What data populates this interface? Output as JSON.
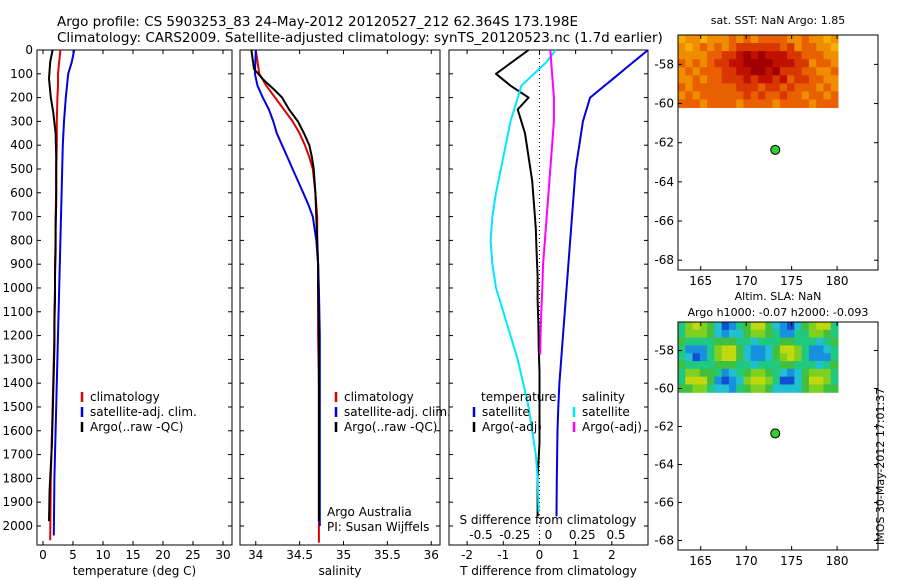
{
  "header": {
    "line1": "Argo profile: CS 5903253_83 24-May-2012 20120527_212 62.364S 173.198E",
    "line2": "Climatology: CARS2009. Satellite-adjusted climatology: synTS_20120523.nc (1.7d earlier)"
  },
  "timestamp": "IMOS 30-May-2012 17:01:37",
  "colors": {
    "climatology": "#e00000",
    "satellite": "#0000e0",
    "argo": "#000000",
    "sal_satellite": "#00e8ff",
    "sal_argo": "#ff00ff",
    "float_marker": "#33cc33"
  },
  "chart_data": [
    {
      "type": "line",
      "id": "temperature",
      "xlabel": "temperature (deg C)",
      "xticks": [
        0,
        5,
        10,
        15,
        20,
        25,
        30
      ],
      "xlim": [
        -1,
        31.5
      ],
      "yticks": [
        0,
        100,
        200,
        300,
        400,
        500,
        600,
        700,
        800,
        900,
        1000,
        1100,
        1200,
        1300,
        1400,
        1500,
        1600,
        1700,
        1800,
        1900,
        2000
      ],
      "ylim": [
        2080,
        0
      ],
      "legend": [
        "climatology",
        "satellite-adj. clim.",
        "Argo(..raw -QC)"
      ],
      "series": [
        {
          "name": "climatology",
          "color": "#e00000",
          "x": [
            2.9,
            2.7,
            2.5,
            2.5,
            2.4,
            2.3,
            2.3,
            2.2,
            2.2,
            2.1,
            2.1,
            2.0,
            2.0,
            1.9,
            1.9,
            1.8,
            1.7,
            1.6,
            1.5,
            1.4,
            1.3,
            1.2
          ],
          "y": [
            0,
            50,
            100,
            150,
            200,
            300,
            400,
            500,
            600,
            700,
            800,
            900,
            1000,
            1100,
            1200,
            1300,
            1400,
            1500,
            1600,
            1700,
            1800,
            2060
          ]
        },
        {
          "name": "satellite-adj. clim.",
          "color": "#0000e0",
          "x": [
            5.2,
            4.8,
            4.2,
            3.8,
            3.5,
            3.3,
            3.2,
            3.1,
            3.0,
            2.9,
            2.8,
            2.7,
            2.6,
            2.5,
            2.4,
            2.3,
            2.2,
            2.1,
            2.0,
            1.9,
            1.8
          ],
          "y": [
            0,
            50,
            100,
            200,
            300,
            400,
            500,
            600,
            700,
            800,
            900,
            1000,
            1100,
            1200,
            1300,
            1400,
            1500,
            1600,
            1700,
            1800,
            2040
          ]
        },
        {
          "name": "Argo(..raw -QC)",
          "color": "#000000",
          "x": [
            1.6,
            1.2,
            1.0,
            1.3,
            1.7,
            2.1,
            2.2,
            2.2,
            2.2,
            2.1,
            2.1,
            2.0,
            2.0,
            1.9,
            1.9,
            1.8,
            1.7,
            1.6,
            1.5,
            1.3,
            1.1,
            1.0
          ],
          "y": [
            0,
            50,
            120,
            200,
            260,
            350,
            450,
            550,
            650,
            750,
            850,
            950,
            1050,
            1150,
            1250,
            1350,
            1450,
            1550,
            1650,
            1750,
            1850,
            1980
          ]
        }
      ]
    },
    {
      "type": "line",
      "id": "salinity",
      "xlabel": "salinity",
      "xticks": [
        34,
        34.5,
        35,
        35.5,
        36
      ],
      "xlim": [
        33.82,
        36.1
      ],
      "ylim": [
        2080,
        0
      ],
      "legend": [
        "climatology",
        "satellite-adj. clim.",
        "Argo(..raw -QC)"
      ],
      "series": [
        {
          "name": "climatology",
          "color": "#e00000",
          "x": [
            34.0,
            34.04,
            34.12,
            34.22,
            34.32,
            34.42,
            34.5,
            34.56,
            34.61,
            34.65,
            34.68,
            34.7,
            34.7,
            34.71,
            34.71,
            34.71,
            34.72,
            34.72,
            34.72,
            34.72
          ],
          "y": [
            0,
            100,
            150,
            200,
            250,
            300,
            350,
            400,
            450,
            500,
            600,
            700,
            800,
            900,
            1000,
            1200,
            1400,
            1600,
            1800,
            2070
          ]
        },
        {
          "name": "satellite-adj. clim.",
          "color": "#0000e0",
          "x": [
            34.0,
            33.99,
            34.02,
            34.08,
            34.15,
            34.2,
            34.24,
            34.3,
            34.36,
            34.42,
            34.48,
            34.54,
            34.6,
            34.65,
            34.69,
            34.71,
            34.72,
            34.73,
            34.73,
            34.73,
            34.73
          ],
          "y": [
            0,
            100,
            150,
            200,
            250,
            300,
            350,
            400,
            450,
            500,
            550,
            600,
            650,
            700,
            800,
            900,
            1000,
            1200,
            1400,
            1600,
            2000
          ]
        },
        {
          "name": "Argo(..raw -QC)",
          "color": "#000000",
          "x": [
            33.95,
            33.98,
            34.1,
            34.22,
            34.3,
            34.38,
            34.48,
            34.55,
            34.61,
            34.64,
            34.66,
            34.68,
            34.69,
            34.7,
            34.71,
            34.71,
            34.72,
            34.72,
            34.72,
            34.72,
            34.72
          ],
          "y": [
            0,
            80,
            130,
            170,
            200,
            250,
            300,
            350,
            400,
            450,
            500,
            600,
            700,
            800,
            900,
            1000,
            1200,
            1400,
            1600,
            1800,
            1980
          ]
        }
      ]
    },
    {
      "type": "line",
      "id": "difference",
      "xlabel": "T difference from climatology",
      "xlabel_top": "S difference from climatology",
      "xticks": [
        -2,
        -1,
        0,
        1,
        2
      ],
      "xticks_top": [
        "-0.5",
        "-0.25",
        "0",
        "0.25",
        "0.5"
      ],
      "xlim": [
        -2.5,
        3.0
      ],
      "ylim": [
        2080,
        0
      ],
      "legend_titles": [
        "temperature",
        "salinity"
      ],
      "legend": [
        "satellite",
        "Argo(-adj)",
        "satellite",
        "Argo(-adj)"
      ],
      "series": [
        {
          "name": "temperature satellite",
          "color": "#0000e0",
          "x": [
            3.0,
            2.6,
            2.2,
            1.8,
            1.4,
            1.2,
            1.1,
            1.0,
            0.95,
            0.9,
            0.85,
            0.8,
            0.75,
            0.7,
            0.65,
            0.6,
            0.55,
            0.52,
            0.5,
            0.48,
            0.47
          ],
          "y": [
            0,
            50,
            100,
            150,
            200,
            300,
            400,
            500,
            600,
            700,
            800,
            900,
            1000,
            1100,
            1200,
            1300,
            1400,
            1500,
            1600,
            1800,
            1960
          ]
        },
        {
          "name": "temperature Argo(-adj)",
          "color": "#000000",
          "x": [
            -0.3,
            -1.2,
            -0.8,
            -0.3,
            -0.6,
            -0.4,
            -0.3,
            -0.2,
            -0.15,
            -0.1,
            -0.08,
            -0.05,
            -0.05,
            -0.03,
            -0.02,
            0.0,
            0.0,
            0.0,
            -0.05,
            -0.05
          ],
          "y": [
            0,
            100,
            150,
            200,
            250,
            350,
            450,
            550,
            650,
            750,
            850,
            950,
            1050,
            1150,
            1250,
            1350,
            1500,
            1650,
            1800,
            1960
          ]
        },
        {
          "name": "salinity satellite",
          "color": "#00e8ff",
          "x": [
            0.45,
            0.2,
            -0.5,
            -0.8,
            -1.0,
            -1.2,
            -1.3,
            -1.35,
            -1.3,
            -1.2,
            -1.0,
            -0.8,
            -0.6,
            -0.45,
            -0.3,
            -0.2,
            -0.1,
            -0.05,
            -0.02
          ],
          "y": [
            0,
            50,
            150,
            300,
            450,
            600,
            700,
            800,
            900,
            1000,
            1100,
            1200,
            1300,
            1400,
            1500,
            1600,
            1700,
            1800,
            1940
          ]
        },
        {
          "name": "salinity Argo(-adj)",
          "color": "#ff00ff",
          "x": [
            0.3,
            0.35,
            0.4,
            0.4,
            0.35,
            0.3,
            0.25,
            0.2,
            0.15,
            0.1,
            0.08,
            0.05,
            0.03,
            0.02
          ],
          "y": [
            0,
            100,
            200,
            300,
            400,
            500,
            600,
            700,
            800,
            900,
            1000,
            1100,
            1200,
            1280
          ]
        }
      ]
    }
  ],
  "maps": [
    {
      "title": "sat. SST: NaN Argo: 1.85",
      "xticks": [
        165,
        170,
        175,
        180
      ],
      "yticks": [
        -58,
        -60,
        -62,
        -64,
        -66,
        -68
      ],
      "xlim": [
        162.5,
        184.5
      ],
      "ylim": [
        -68.5,
        -56.5
      ],
      "float": {
        "lon": 173.198,
        "lat": -62.364
      }
    },
    {
      "title": "Altim. SLA: NaN",
      "subtitle": "Argo h1000: -0.07 h2000: -0.093",
      "xticks": [
        165,
        170,
        175,
        180
      ],
      "yticks": [
        -58,
        -60,
        -62,
        -64,
        -66,
        -68
      ],
      "xlim": [
        162.5,
        184.5
      ],
      "ylim": [
        -68.5,
        -56.5
      ],
      "float": {
        "lon": 173.198,
        "lat": -62.364
      }
    }
  ],
  "annotations": {
    "institution": "Argo Australia",
    "pi": "PI: Susan Wijffels"
  }
}
